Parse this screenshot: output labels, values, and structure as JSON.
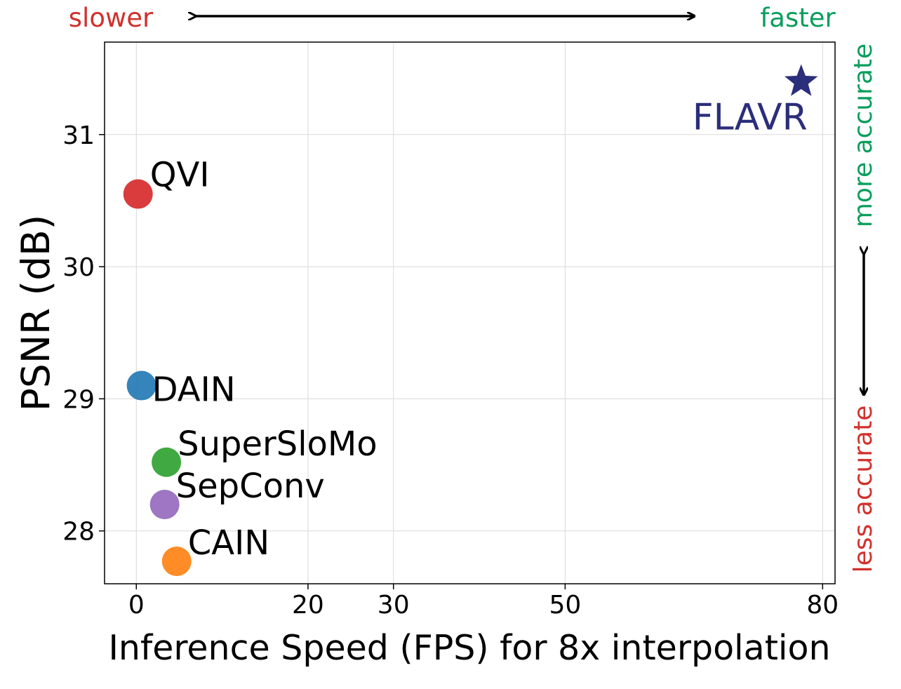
{
  "chart_data": {
    "type": "scatter",
    "title": "",
    "xlabel": "Inference Speed (FPS) for 8x interpolation",
    "ylabel": "PSNR (dB)",
    "xlim": [
      -3.5,
      81.5
    ],
    "ylim": [
      27.6,
      31.7
    ],
    "x_ticks": [
      0,
      20,
      30,
      50,
      80
    ],
    "x_tick_labels": [
      "0",
      "20",
      "30",
      "50",
      "80"
    ],
    "y_ticks": [
      28,
      29,
      30,
      31
    ],
    "y_tick_labels": [
      "28",
      "29",
      "30",
      "31"
    ],
    "grid": true,
    "points": [
      {
        "name": "QVI",
        "x": 0.2,
        "y": 30.55,
        "color": "#d62728",
        "marker": "circle"
      },
      {
        "name": "DAIN",
        "x": 0.6,
        "y": 29.1,
        "color": "#1f77b4",
        "marker": "circle"
      },
      {
        "name": "SuperSloMo",
        "x": 3.5,
        "y": 28.52,
        "color": "#2ca02c",
        "marker": "circle"
      },
      {
        "name": "SepConv",
        "x": 3.3,
        "y": 28.2,
        "color": "#9467bd",
        "marker": "circle"
      },
      {
        "name": "CAIN",
        "x": 4.7,
        "y": 27.77,
        "color": "#ff7f0e",
        "marker": "circle"
      },
      {
        "name": "FLAVR",
        "x": 77.5,
        "y": 31.4,
        "color": "#2b2e7a",
        "marker": "star"
      }
    ],
    "annotations": {
      "slower": {
        "text": "slower",
        "color": "#d0312d"
      },
      "faster": {
        "text": "faster",
        "color": "#0a9e5c"
      },
      "more_accurate": {
        "text": "more accurate",
        "color": "#0a9e5c"
      },
      "less_accurate": {
        "text": "less accurate",
        "color": "#d0312d"
      }
    }
  }
}
